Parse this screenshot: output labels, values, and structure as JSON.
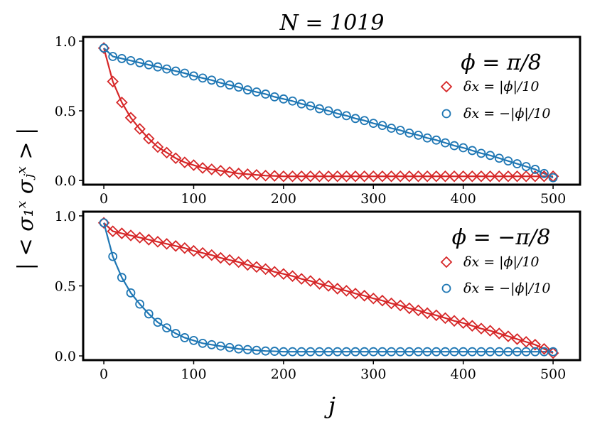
{
  "figure": {
    "title": "N = 1019",
    "xlabel": "j",
    "ylabel": "| < σ₁ˣ σⱼˣ > |"
  },
  "colors": {
    "red": "#d62728",
    "blue": "#1f77b4"
  },
  "chart_data": [
    {
      "type": "line",
      "panel_title": "ϕ = π/8",
      "xlim": [
        -23,
        530
      ],
      "ylim": [
        -0.03,
        1.03
      ],
      "xticks": [
        "0",
        "100",
        "200",
        "300",
        "400",
        "500"
      ],
      "yticks": [
        "0.0",
        "0.5",
        "1.0"
      ],
      "legend_position": "top-right",
      "series": [
        {
          "name": "δx = |ϕ|/10",
          "color": "#d62728",
          "marker": "diamond",
          "x": [
            0,
            10,
            20,
            30,
            40,
            50,
            60,
            70,
            80,
            90,
            100,
            110,
            120,
            130,
            140,
            150,
            160,
            170,
            180,
            190,
            200,
            210,
            220,
            230,
            240,
            250,
            260,
            270,
            280,
            290,
            300,
            310,
            320,
            330,
            340,
            350,
            360,
            370,
            380,
            390,
            400,
            410,
            420,
            430,
            440,
            450,
            460,
            470,
            480,
            490,
            500
          ],
          "values": [
            0.95,
            0.71,
            0.56,
            0.45,
            0.37,
            0.3,
            0.24,
            0.2,
            0.16,
            0.13,
            0.11,
            0.09,
            0.08,
            0.07,
            0.06,
            0.05,
            0.045,
            0.04,
            0.035,
            0.033,
            0.03,
            0.03,
            0.03,
            0.03,
            0.03,
            0.03,
            0.03,
            0.03,
            0.03,
            0.03,
            0.03,
            0.03,
            0.03,
            0.03,
            0.03,
            0.03,
            0.03,
            0.03,
            0.03,
            0.03,
            0.03,
            0.03,
            0.03,
            0.03,
            0.03,
            0.03,
            0.03,
            0.03,
            0.03,
            0.03,
            0.03
          ]
        },
        {
          "name": "δx = −|ϕ|/10",
          "color": "#1f77b4",
          "marker": "circle",
          "x": [
            0,
            10,
            20,
            30,
            40,
            50,
            60,
            70,
            80,
            90,
            100,
            110,
            120,
            130,
            140,
            150,
            160,
            170,
            180,
            190,
            200,
            210,
            220,
            230,
            240,
            250,
            260,
            270,
            280,
            290,
            300,
            310,
            320,
            330,
            340,
            350,
            360,
            370,
            380,
            390,
            400,
            410,
            420,
            430,
            440,
            450,
            460,
            470,
            480,
            490,
            500
          ],
          "values": [
            0.95,
            0.89,
            0.875,
            0.86,
            0.845,
            0.83,
            0.815,
            0.8,
            0.785,
            0.77,
            0.75,
            0.735,
            0.72,
            0.7,
            0.685,
            0.67,
            0.65,
            0.635,
            0.62,
            0.6,
            0.585,
            0.57,
            0.55,
            0.535,
            0.515,
            0.5,
            0.48,
            0.465,
            0.445,
            0.43,
            0.41,
            0.395,
            0.375,
            0.36,
            0.34,
            0.325,
            0.305,
            0.29,
            0.27,
            0.25,
            0.235,
            0.215,
            0.195,
            0.18,
            0.16,
            0.14,
            0.12,
            0.1,
            0.08,
            0.05,
            0.02
          ]
        }
      ]
    },
    {
      "type": "line",
      "panel_title": "ϕ = −π/8",
      "xlim": [
        -23,
        530
      ],
      "ylim": [
        -0.03,
        1.03
      ],
      "xticks": [
        "0",
        "100",
        "200",
        "300",
        "400",
        "500"
      ],
      "yticks": [
        "0.0",
        "0.5",
        "1.0"
      ],
      "legend_position": "top-right",
      "series": [
        {
          "name": "δx = |ϕ|/10",
          "color": "#d62728",
          "marker": "diamond",
          "x": [
            0,
            10,
            20,
            30,
            40,
            50,
            60,
            70,
            80,
            90,
            100,
            110,
            120,
            130,
            140,
            150,
            160,
            170,
            180,
            190,
            200,
            210,
            220,
            230,
            240,
            250,
            260,
            270,
            280,
            290,
            300,
            310,
            320,
            330,
            340,
            350,
            360,
            370,
            380,
            390,
            400,
            410,
            420,
            430,
            440,
            450,
            460,
            470,
            480,
            490,
            500
          ],
          "values": [
            0.95,
            0.89,
            0.875,
            0.86,
            0.845,
            0.83,
            0.815,
            0.8,
            0.785,
            0.77,
            0.75,
            0.735,
            0.72,
            0.7,
            0.685,
            0.67,
            0.65,
            0.635,
            0.62,
            0.6,
            0.585,
            0.57,
            0.55,
            0.535,
            0.515,
            0.5,
            0.48,
            0.465,
            0.445,
            0.43,
            0.41,
            0.395,
            0.375,
            0.36,
            0.34,
            0.325,
            0.305,
            0.29,
            0.27,
            0.25,
            0.235,
            0.215,
            0.195,
            0.18,
            0.16,
            0.14,
            0.12,
            0.1,
            0.08,
            0.05,
            0.02
          ]
        },
        {
          "name": "δx = −|ϕ|/10",
          "color": "#1f77b4",
          "marker": "circle",
          "x": [
            0,
            10,
            20,
            30,
            40,
            50,
            60,
            70,
            80,
            90,
            100,
            110,
            120,
            130,
            140,
            150,
            160,
            170,
            180,
            190,
            200,
            210,
            220,
            230,
            240,
            250,
            260,
            270,
            280,
            290,
            300,
            310,
            320,
            330,
            340,
            350,
            360,
            370,
            380,
            390,
            400,
            410,
            420,
            430,
            440,
            450,
            460,
            470,
            480,
            490,
            500
          ],
          "values": [
            0.95,
            0.71,
            0.56,
            0.45,
            0.37,
            0.3,
            0.24,
            0.2,
            0.16,
            0.13,
            0.11,
            0.09,
            0.08,
            0.07,
            0.06,
            0.05,
            0.045,
            0.04,
            0.035,
            0.033,
            0.03,
            0.03,
            0.03,
            0.03,
            0.03,
            0.03,
            0.03,
            0.03,
            0.03,
            0.03,
            0.03,
            0.03,
            0.03,
            0.03,
            0.03,
            0.03,
            0.03,
            0.03,
            0.03,
            0.03,
            0.03,
            0.03,
            0.03,
            0.03,
            0.03,
            0.03,
            0.03,
            0.03,
            0.03,
            0.03,
            0.03
          ]
        }
      ]
    }
  ]
}
